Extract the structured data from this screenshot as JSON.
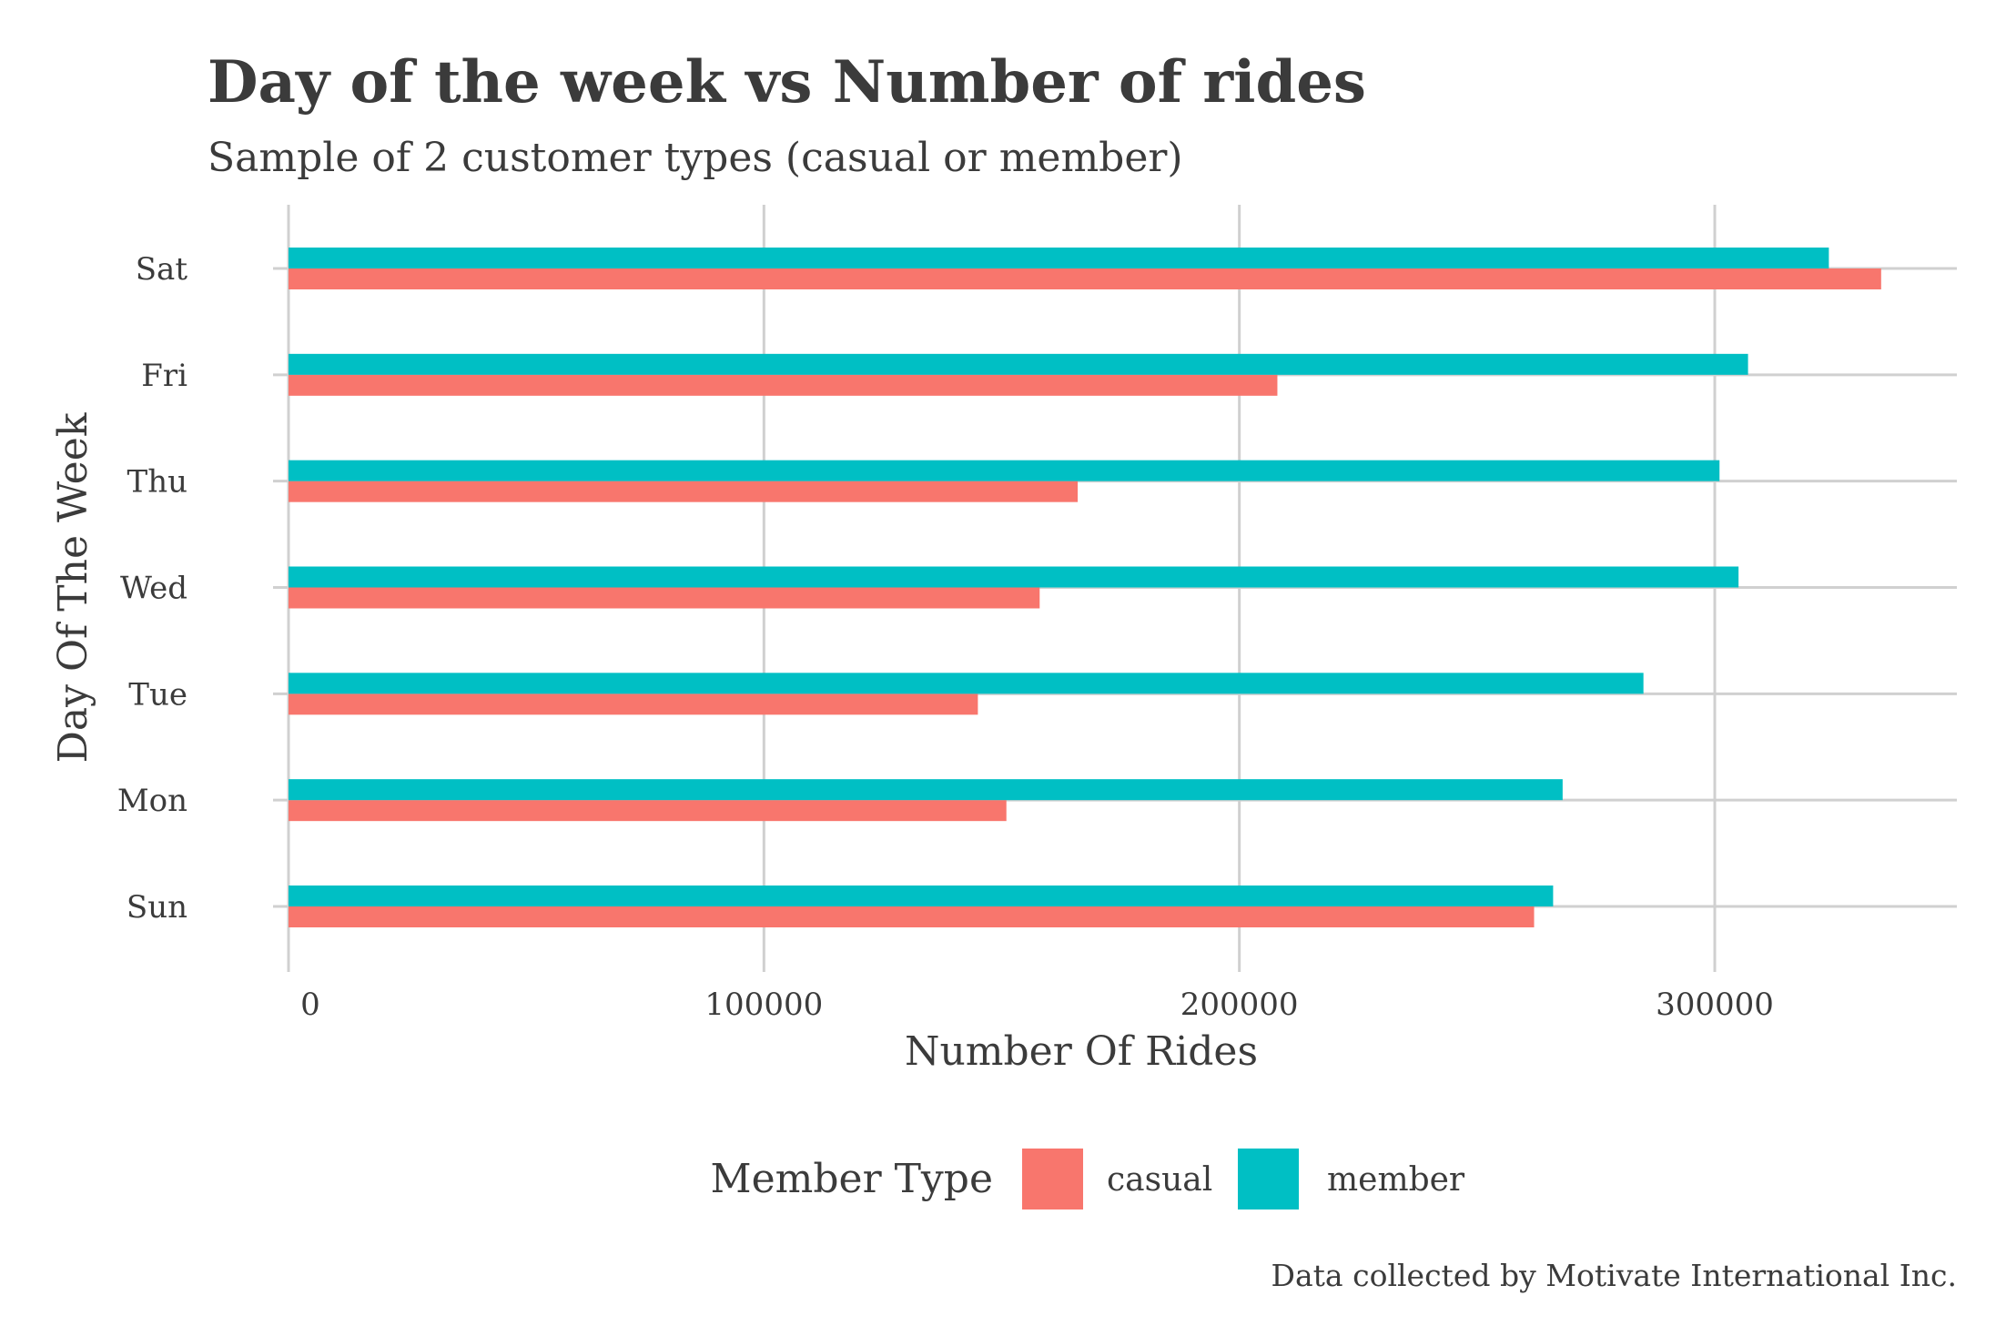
{
  "chart_data": {
    "type": "bar",
    "orientation": "horizontal",
    "title": "Day of the week vs Number of rides",
    "subtitle": "Sample of 2 customer types (casual or member)",
    "xlabel": "Number Of Rides",
    "ylabel": "Day Of The Week",
    "caption": "Data collected by Motivate International Inc.",
    "categories": [
      "Sun",
      "Mon",
      "Tue",
      "Wed",
      "Thu",
      "Fri",
      "Sat"
    ],
    "series": [
      {
        "name": "casual",
        "color": "#F8766D",
        "values": [
          262000,
          151000,
          145000,
          158000,
          166000,
          208000,
          335000
        ]
      },
      {
        "name": "member",
        "color": "#00BFC4",
        "values": [
          266000,
          268000,
          285000,
          305000,
          301000,
          307000,
          324000
        ]
      }
    ],
    "xlim": [
      0,
      352000
    ],
    "x_ticks": [
      "0",
      "100000",
      "200000",
      "300000"
    ],
    "x_tick_values": [
      0,
      100000,
      200000,
      300000
    ],
    "grid": true,
    "legend": {
      "title": "Member Type",
      "position": "bottom"
    }
  }
}
